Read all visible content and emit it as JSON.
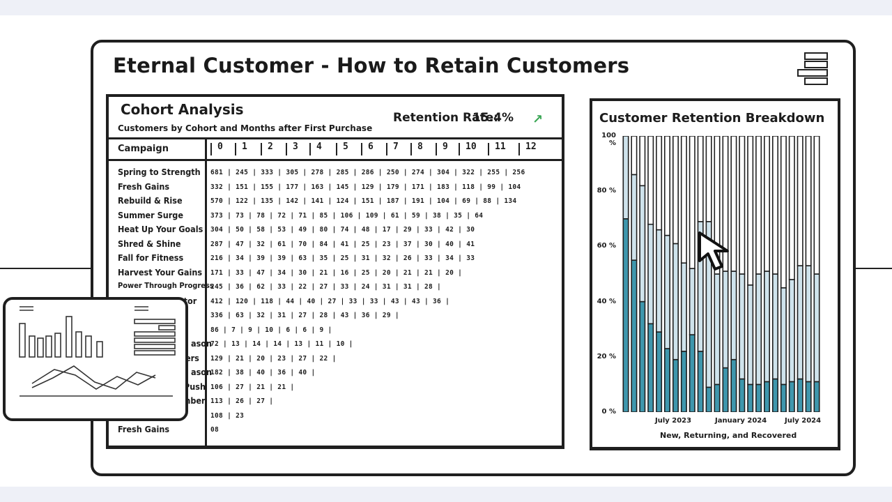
{
  "app": {
    "title": "Eternal Customer - How to Retain Customers"
  },
  "cohort": {
    "title": "Cohort Analysis",
    "subtitle": "Customers by Cohort and Months after First Purchase",
    "retention_label": "Retention Rate:",
    "retention_value": "15.4%",
    "campaign_header": "Campaign",
    "months": [
      "0",
      "1",
      "2",
      "3",
      "4",
      "5",
      "6",
      "7",
      "8",
      "9",
      "10",
      "11",
      "12"
    ],
    "campaigns": [
      "Spring to Strength",
      "Fresh Gains",
      "Rebuild & Rise",
      "Summer Surge",
      "Heat Up Your Goals",
      "Shred & Shine",
      "Fall for Fitness",
      "Harvest Your Gains",
      "Power Through Progress",
      "",
      "",
      "",
      "",
      "",
      "",
      "",
      "",
      "",
      "Fresh Gains"
    ],
    "rows": [
      "681 | 245 | 333 | 305 | 278 | 285 | 286 | 250 | 274 | 304 | 322 | 255 | 256",
      "332 | 151 | 155 | 177 | 163 | 145 | 129 | 179 | 171 | 183 | 118 | 99 | 104",
      "570 | 122 | 135 | 142 | 141 | 124 | 151 | 187 | 191 | 104 | 69 | 88 | 134",
      "373 | 73 | 78 | 72 | 71 | 85 | 106 | 109 | 61 | 59 | 38 | 35 | 64",
      "304 | 50 | 58 | 53 | 49 | 80 | 74 | 48 | 17 | 29 | 33 | 42 | 30",
      "287 | 47 | 32 | 61 | 70 | 84 | 41 | 25 | 23 | 37 | 30 | 40 | 41",
      "216 | 34 | 39 | 39 | 63 | 35 | 25 | 31 | 32 | 26 | 33 | 34 | 33",
      "171 | 33 | 47 | 34 | 30 | 21 | 16 | 25 | 20 | 21 | 21 | 20 |",
      "245 | 36 | 62 | 33 | 22 | 27 | 33 | 24 | 31 | 31 | 28 |",
      "412 | 120 | 118 | 44 | 40 | 27 | 33 | 33 | 43 | 43 | 36 |",
      "336 | 63 | 32 | 31 | 27 | 28 | 43 | 36 | 29 |",
      "86 | 7 | 9 | 10 | 6 | 6 | 9 |",
      "72 | 13 | 14 | 14 | 13 | 11 | 10 |",
      "129 | 21 | 20 | 23 | 27 | 22 |",
      "182 | 38 | 40 | 36 | 40 |",
      "106 | 27 | 21 | 21 |",
      "113 | 26 | 27 |",
      "108 | 23",
      "08"
    ],
    "partial_labels": [
      "ator",
      "ason",
      "ers",
      "ason",
      "Push",
      "ember"
    ]
  },
  "breakdown": {
    "title": "Customer Retention Breakdown",
    "caption": "New, Returning, and Recovered",
    "y_ticks": [
      "100 %",
      "80 %",
      "60 %",
      "40 %",
      "20 %",
      "0 %"
    ],
    "x_ticks": [
      "July 2023",
      "January 2024",
      "July 2024"
    ]
  },
  "chart_data": {
    "type": "bar",
    "stacked": true,
    "title": "Customer Retention Breakdown",
    "xlabel": "New, Returning, and Recovered",
    "ylim": [
      0,
      100
    ],
    "x_tick_labels": [
      "July 2023",
      "January 2024",
      "July 2024"
    ],
    "y_tick_labels": [
      "0 %",
      "20 %",
      "40 %",
      "60 %",
      "80 %",
      "100 %"
    ],
    "num_bars": 24,
    "series": [
      {
        "color": "#3f97ad",
        "values": [
          70,
          55,
          40,
          32,
          29,
          23,
          19,
          22,
          28,
          22,
          9,
          10,
          16,
          19,
          12,
          10,
          10,
          11,
          12,
          10,
          11,
          12,
          11,
          11
        ]
      },
      {
        "color": "#cfe3ec",
        "values": [
          30,
          31,
          42,
          36,
          37,
          41,
          42,
          32,
          24,
          47,
          60,
          40,
          35,
          32,
          38,
          36,
          40,
          40,
          38,
          35,
          37,
          41,
          42,
          39
        ]
      },
      {
        "color": "#ffffff",
        "values": [
          0,
          14,
          18,
          32,
          34,
          36,
          39,
          46,
          48,
          31,
          31,
          50,
          49,
          49,
          50,
          54,
          50,
          49,
          50,
          55,
          52,
          47,
          47,
          50
        ]
      }
    ],
    "colors": {
      "new": "#3f97ad",
      "returning": "#cfe3ec",
      "recovered": "#ffffff",
      "trend_up": "#3aa655"
    }
  }
}
